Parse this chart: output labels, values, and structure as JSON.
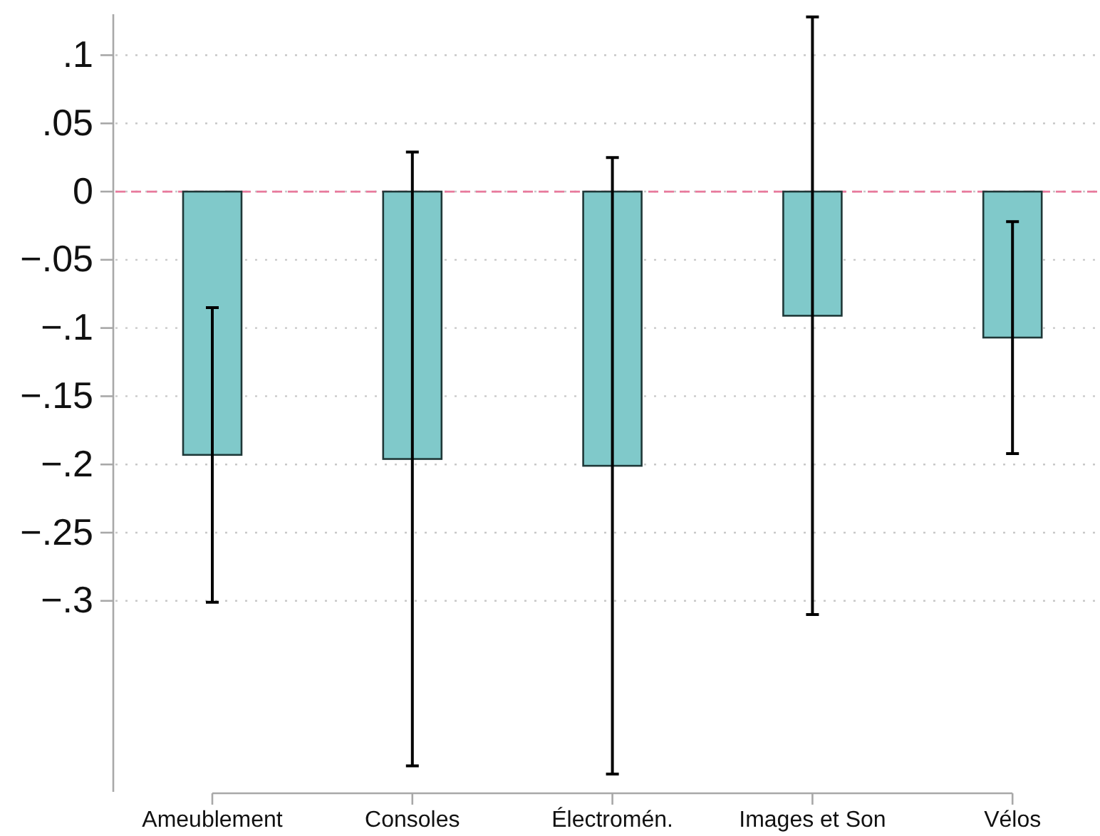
{
  "chart_data": {
    "type": "bar",
    "categories": [
      "Ameublement",
      "Consoles",
      "Électromén.",
      "Images et Son",
      "Vélos"
    ],
    "values": [
      -0.193,
      -0.196,
      -0.201,
      -0.091,
      -0.107
    ],
    "errors": [
      0.108,
      0.225,
      0.226,
      0.219,
      0.085
    ],
    "color": "#80c9ca",
    "ylim": [
      -0.44,
      0.13
    ],
    "yticks": [
      {
        "value": 0.1,
        "label": ".1"
      },
      {
        "value": 0.05,
        "label": ".05"
      },
      {
        "value": 0,
        "label": "0"
      },
      {
        "value": -0.05,
        "label": "−.05"
      },
      {
        "value": -0.1,
        "label": "−.1"
      },
      {
        "value": -0.15,
        "label": "−.15"
      },
      {
        "value": -0.2,
        "label": "−.2"
      },
      {
        "value": -0.25,
        "label": "−.25"
      },
      {
        "value": -0.3,
        "label": "−.3"
      }
    ],
    "grid": "y",
    "ref_lines": [
      {
        "axis": "y",
        "value": 0,
        "color": "#e8799c",
        "line_style": "dashed"
      }
    ]
  }
}
